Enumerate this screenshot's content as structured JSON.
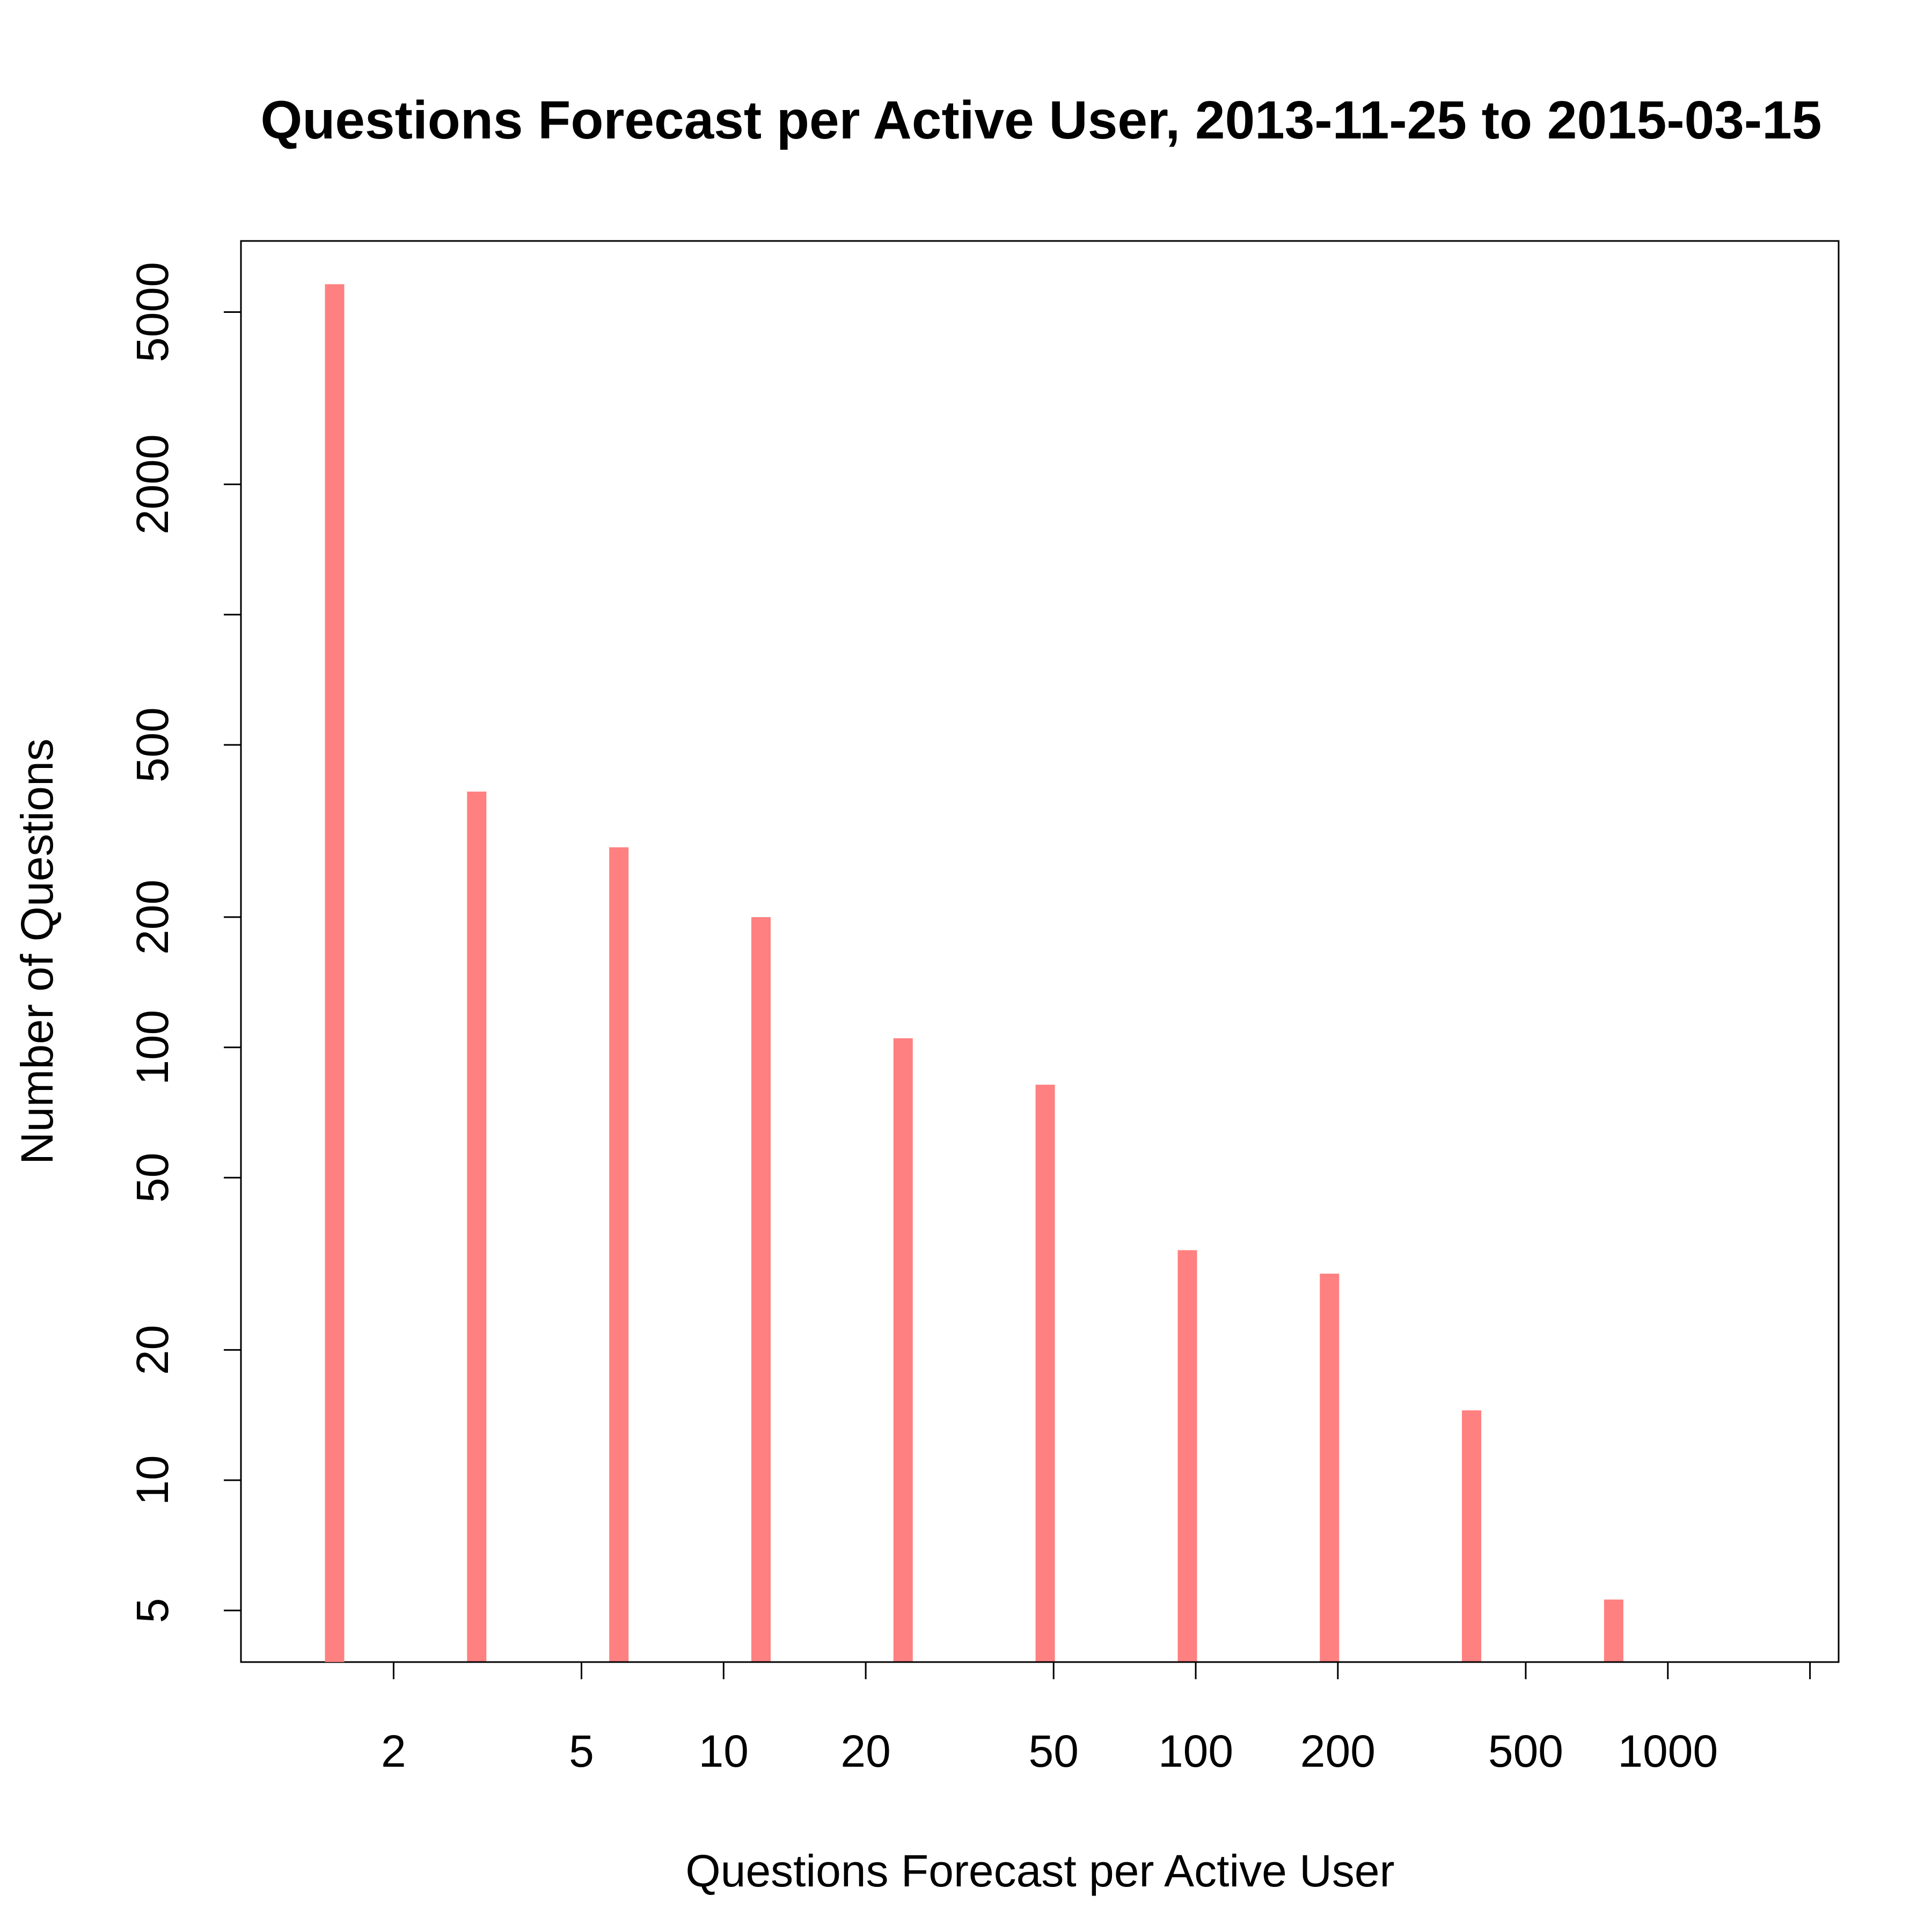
{
  "chart_data": {
    "type": "bar",
    "title": "Questions Forecast per Active User, 2013-11-25 to 2015-03-15",
    "xlabel": "Questions Forecast per Active User",
    "ylabel": "Number of Questions",
    "x_scale": "log",
    "y_scale": "log",
    "x": [
      1.5,
      3,
      6,
      12,
      24,
      48,
      96,
      192,
      384,
      768
    ],
    "values": [
      5800,
      390,
      290,
      200,
      105,
      82,
      34,
      30,
      14.5,
      5.3
    ],
    "xlim": [
      0.95,
      2300
    ],
    "ylim": [
      3.8,
      7300
    ],
    "x_ticks": [
      {
        "value": 2,
        "label": "2"
      },
      {
        "value": 5,
        "label": "5"
      },
      {
        "value": 10,
        "label": "10"
      },
      {
        "value": 20,
        "label": "20"
      },
      {
        "value": 50,
        "label": "50"
      },
      {
        "value": 100,
        "label": "100"
      },
      {
        "value": 200,
        "label": "200"
      },
      {
        "value": 500,
        "label": "500"
      },
      {
        "value": 1000,
        "label": "1000"
      },
      {
        "value": 2000,
        "label": ""
      }
    ],
    "y_ticks": [
      {
        "value": 5,
        "label": "5"
      },
      {
        "value": 10,
        "label": "10"
      },
      {
        "value": 20,
        "label": "20"
      },
      {
        "value": 50,
        "label": "50"
      },
      {
        "value": 100,
        "label": "100"
      },
      {
        "value": 200,
        "label": "200"
      },
      {
        "value": 500,
        "label": "500"
      },
      {
        "value": 1000,
        "label": ""
      },
      {
        "value": 2000,
        "label": "2000"
      },
      {
        "value": 5000,
        "label": "5000"
      }
    ],
    "bar_color": "#ff8080",
    "grid": false,
    "legend": "none"
  }
}
